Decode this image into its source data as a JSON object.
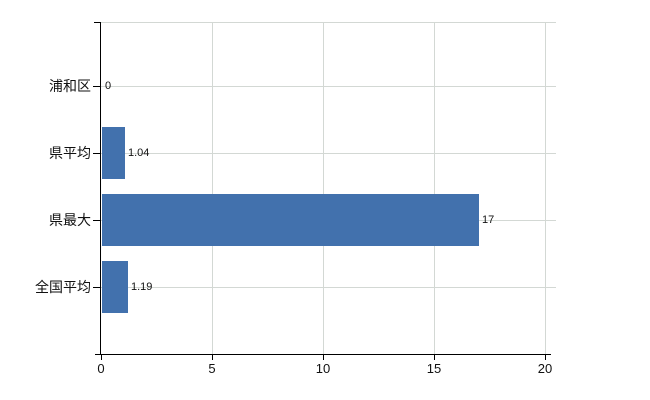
{
  "chart_data": {
    "type": "bar",
    "orientation": "horizontal",
    "title": "",
    "xlabel": "",
    "ylabel": "",
    "categories": [
      "浦和区",
      "県平均",
      "県最大",
      "全国平均"
    ],
    "values": [
      0,
      1.04,
      17,
      1.19
    ],
    "value_labels": [
      "0",
      "1.04",
      "17",
      "1.19"
    ],
    "xlim": [
      0,
      20
    ],
    "xticks": [
      0,
      5,
      10,
      15,
      20
    ],
    "grid": true,
    "legend": false,
    "colors": {
      "bar": "#4271ad",
      "gridline": "#d3d8d4",
      "axis": "#000000",
      "text": "#111111",
      "background": "#ffffff"
    }
  }
}
